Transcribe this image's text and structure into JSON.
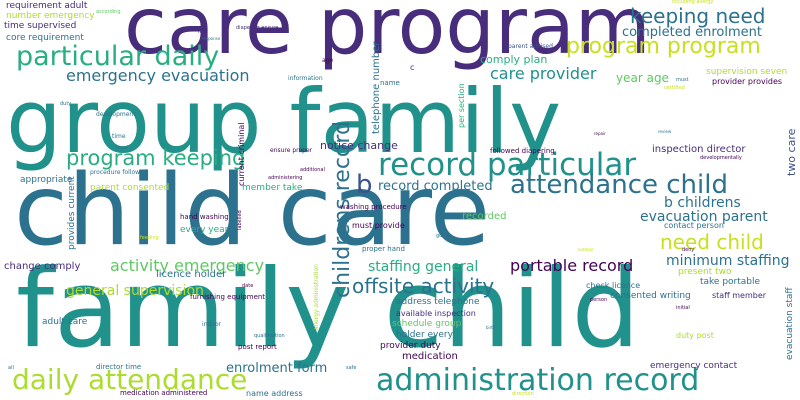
{
  "words": {
    "care_program": "care program",
    "group_family": "group family",
    "child_care": "child care",
    "family_child": "family child",
    "particular_daily": "particular daily",
    "record_particular": "record particular",
    "daily_attendance": "daily attendance",
    "administration_record": "administration record",
    "attendance_child": "attendance child",
    "program_program": "program program",
    "keeping_need": "keeping need",
    "program_keeping": "program keeping",
    "childrens_record": "childrens record",
    "need_child": "need child",
    "offsite_activity": "offsite activity",
    "activity_emergency": "activity emergency",
    "emergency_evacuation": "emergency evacuation",
    "care_provider": "care provider",
    "b": "b",
    "portable_record": "portable record",
    "minimum_staffing": "minimum staffing",
    "staffing_general": "staffing general",
    "general_supervision": "general supervision",
    "enrolment_form": "enrolment form",
    "b_childrens": "b childrens",
    "evacuation_parent": "evacuation parent",
    "completed_enrolment": "completed enrolment",
    "record_completed": "record completed",
    "notice_change": "notice change",
    "year_age": "year age",
    "comply_plan": "comply plan",
    "inspection_director": "inspection director",
    "two_care": "two care",
    "requirement_adult": "requirement adult",
    "number_emergency": "number emergency",
    "time_supervised": "time supervised",
    "core_requirement": "core requirement",
    "according": "according",
    "including_allergy": "including allergy",
    "diapering_ensure": "diapering ensure",
    "parent_advised": "parent advised",
    "supervision_seven": "supervision seven",
    "provider_provides": "provider provides",
    "telephone_number": "telephone number",
    "per_section": "per section",
    "current_criminal": "current criminal",
    "parent_consented": "parent consented",
    "member_take": "member take",
    "appropriate": "appropriate",
    "followed_diapering": "followed diapering",
    "procedure_followed": "procedure followed",
    "hand_washing": "hand washing",
    "every_year": "every year",
    "licence_holder": "licence holder",
    "change_comply": "change comply",
    "washing_procedure": "washing procedure",
    "must_provide": "must provide",
    "recorded": "recorded",
    "contact_person": "contact person",
    "present_two": "present two",
    "take_portable": "take portable",
    "staff_member": "staff member",
    "evacuation_staff": "evacuation staff",
    "check_licence": "check licence",
    "consented_writing": "consented writing",
    "address_telephone": "address telephone",
    "available_inspection": "available inspection",
    "schedule_group": "schedule group",
    "holder_every": "holder every",
    "provider_duty": "provider duty",
    "duty_post": "duty post",
    "emergency_contact": "emergency contact",
    "medication": "medication",
    "adult_care": "adult care",
    "furnishing_equipment": "furnishing equipment",
    "post_report": "post report",
    "name_address": "name address",
    "medication_administered": "medication administered",
    "director_time": "director time",
    "proper_hand": "proper hand",
    "provides_current": "provides current",
    "development": "development",
    "information": "information",
    "developmentally": "developmentally",
    "name": "name",
    "c": "c",
    "age": "age",
    "first": "first",
    "response": "response",
    "certified": "certified",
    "must": "must",
    "time": "time",
    "level": "level",
    "duty": "duty",
    "ensure_proper": "ensure proper",
    "additional": "additional",
    "administering": "administering",
    "labelled": "labelled",
    "allergy_administration": "allergy administration",
    "indoor": "indoor",
    "qualification": "qualification",
    "repair": "repair",
    "review": "review",
    "deny": "deny",
    "person": "person",
    "initial": "initial",
    "birth": "birth",
    "good": "good",
    "outdoor": "outdoor",
    "home": "home",
    "feeding": "feeding",
    "all": "all",
    "direction": "direction",
    "safe": "safe",
    "date": "date"
  }
}
